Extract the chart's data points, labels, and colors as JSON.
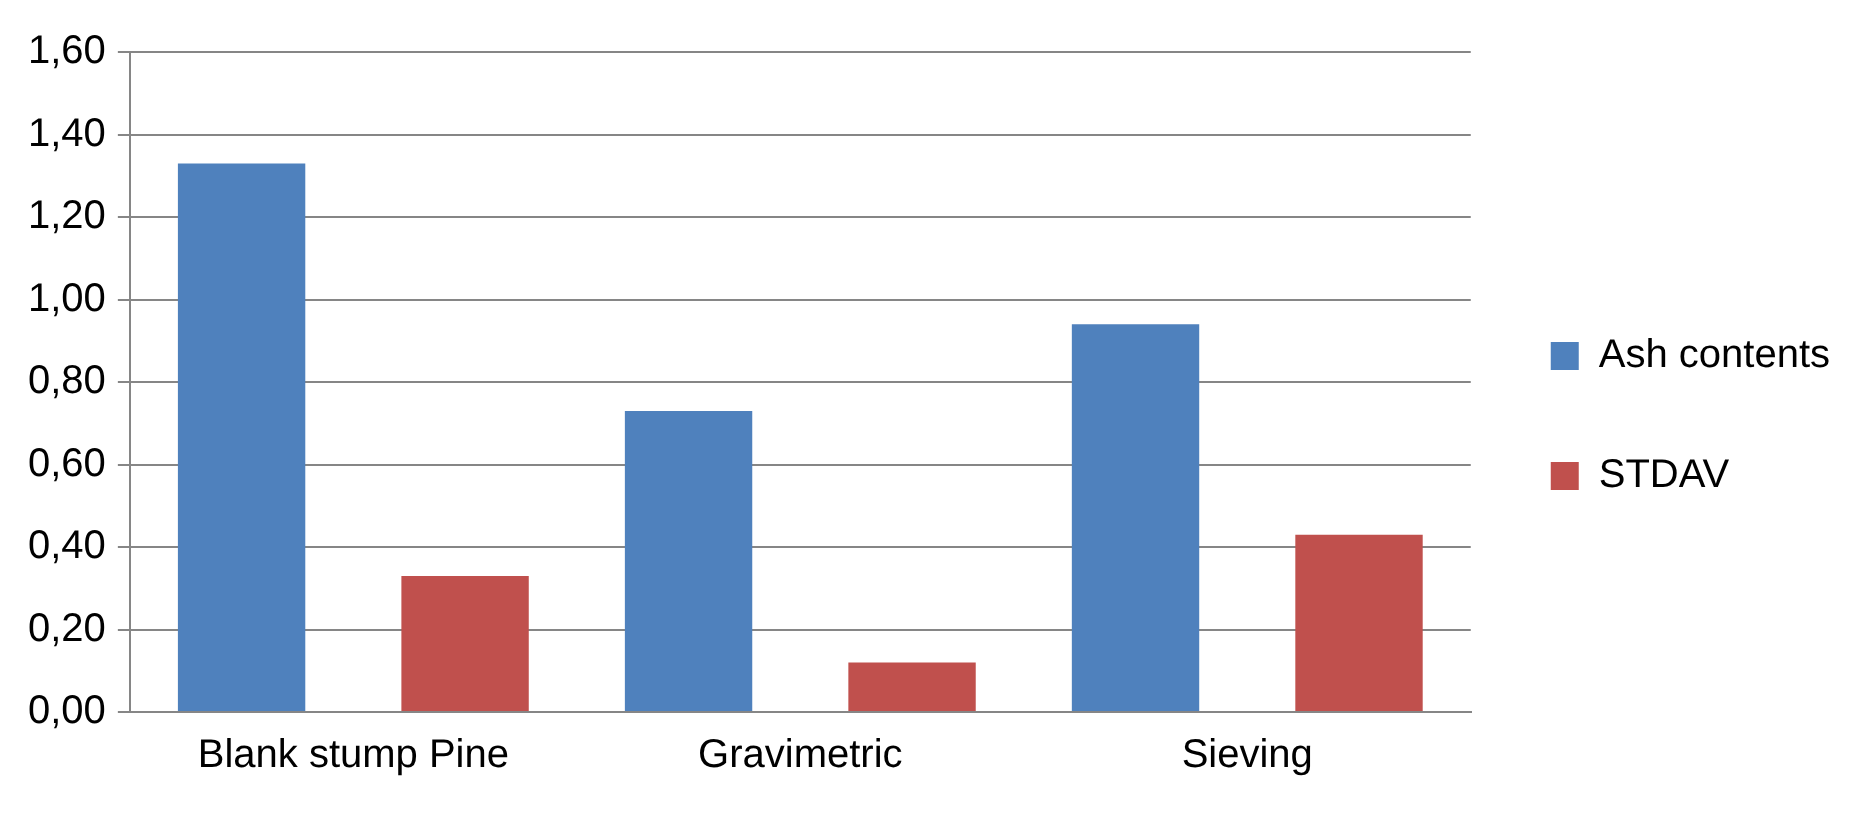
{
  "chart_data": {
    "type": "bar",
    "categories": [
      "Blank stump Pine",
      "Gravimetric",
      "Sieving"
    ],
    "series": [
      {
        "name": "Ash contents",
        "color": "#4f81bd",
        "values": [
          1.33,
          0.73,
          0.94
        ]
      },
      {
        "name": "STDAV",
        "color": "#c0504d",
        "values": [
          0.33,
          0.12,
          0.43
        ]
      }
    ],
    "ylim": [
      0,
      1.6
    ],
    "yticks": [
      {
        "value": 0,
        "label": "0,00"
      },
      {
        "value": 0.2,
        "label": "0,20"
      },
      {
        "value": 0.4,
        "label": "0,40"
      },
      {
        "value": 0.6,
        "label": "0,60"
      },
      {
        "value": 0.8,
        "label": "0,80"
      },
      {
        "value": 1,
        "label": "1,00"
      },
      {
        "value": 1.2,
        "label": "1,20"
      },
      {
        "value": 1.4,
        "label": "1,40"
      },
      {
        "value": 1.6,
        "label": "1,60"
      }
    ],
    "grid": "y",
    "legend": "right"
  }
}
